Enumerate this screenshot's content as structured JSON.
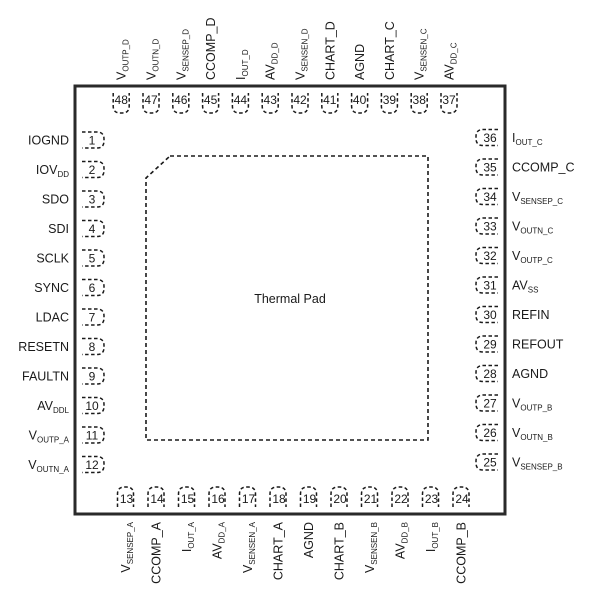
{
  "title": "Thermal Pad",
  "pins": {
    "left": [
      {
        "num": "1",
        "name": "IOGND"
      },
      {
        "num": "2",
        "name": "IOV",
        "sub": "DD"
      },
      {
        "num": "3",
        "name": "SDO"
      },
      {
        "num": "4",
        "name": "SDI"
      },
      {
        "num": "5",
        "name": "SCLK"
      },
      {
        "num": "6",
        "name": "SYNC"
      },
      {
        "num": "7",
        "name": "LDAC"
      },
      {
        "num": "8",
        "name": "RESETN"
      },
      {
        "num": "9",
        "name": "FAULTN"
      },
      {
        "num": "10",
        "name": "AV",
        "sub": "DDL"
      },
      {
        "num": "11",
        "name": "V",
        "sub": "OUTP_A"
      },
      {
        "num": "12",
        "name": "V",
        "sub": "OUTN_A"
      }
    ],
    "bottom": [
      {
        "num": "13",
        "name": "V",
        "sub": "SENSEP_A"
      },
      {
        "num": "14",
        "name": "CCOMP_A"
      },
      {
        "num": "15",
        "name": "I",
        "sub": "OUT_A"
      },
      {
        "num": "16",
        "name": "AV",
        "sub": "DD_A"
      },
      {
        "num": "17",
        "name": "V",
        "sub": "SENSEN_A"
      },
      {
        "num": "18",
        "name": "CHART_A"
      },
      {
        "num": "19",
        "name": "AGND"
      },
      {
        "num": "20",
        "name": "CHART_B"
      },
      {
        "num": "21",
        "name": "V",
        "sub": "SENSEN_B"
      },
      {
        "num": "22",
        "name": "AV",
        "sub": "DD_B"
      },
      {
        "num": "23",
        "name": "I",
        "sub": "OUT_B"
      },
      {
        "num": "24",
        "name": "CCOMP_B"
      }
    ],
    "right": [
      {
        "num": "25",
        "name": "V",
        "sub": "SENSEP_B"
      },
      {
        "num": "26",
        "name": "V",
        "sub": "OUTN_B"
      },
      {
        "num": "27",
        "name": "V",
        "sub": "OUTP_B"
      },
      {
        "num": "28",
        "name": "AGND"
      },
      {
        "num": "29",
        "name": "REFOUT"
      },
      {
        "num": "30",
        "name": "REFIN"
      },
      {
        "num": "31",
        "name": "AV",
        "sub": "SS"
      },
      {
        "num": "32",
        "name": "V",
        "sub": "OUTP_C"
      },
      {
        "num": "33",
        "name": "V",
        "sub": "OUTN_C"
      },
      {
        "num": "34",
        "name": "V",
        "sub": "SENSEP_C"
      },
      {
        "num": "35",
        "name": "CCOMP_C"
      },
      {
        "num": "36",
        "name": "I",
        "sub": "OUT_C"
      }
    ],
    "top": [
      {
        "num": "37",
        "name": "AV",
        "sub": "DD_C"
      },
      {
        "num": "38",
        "name": "V",
        "sub": "SENSEN_C"
      },
      {
        "num": "39",
        "name": "CHART_C"
      },
      {
        "num": "40",
        "name": "AGND"
      },
      {
        "num": "41",
        "name": "CHART_D"
      },
      {
        "num": "42",
        "name": "V",
        "sub": "SENSEN_D"
      },
      {
        "num": "43",
        "name": "AV",
        "sub": "DD_D"
      },
      {
        "num": "44",
        "name": "I",
        "sub": "OUT_D"
      },
      {
        "num": "45",
        "name": "CCOMP_D"
      },
      {
        "num": "46",
        "name": "V",
        "sub": "SENSEP_D"
      },
      {
        "num": "47",
        "name": "V",
        "sub": "OUTN_D"
      },
      {
        "num": "48",
        "name": "V",
        "sub": "OUTP_D"
      }
    ]
  }
}
